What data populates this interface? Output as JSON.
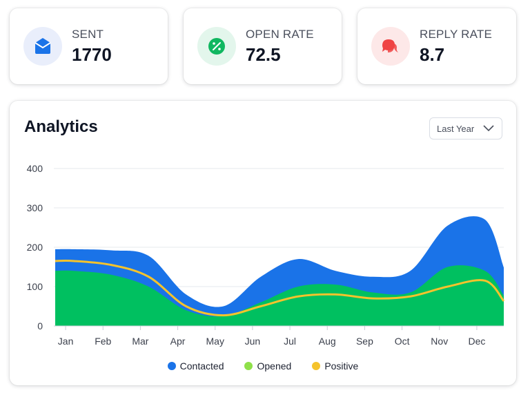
{
  "stats": [
    {
      "label": "SENT",
      "value": "1770",
      "icon": "envelope-icon",
      "icon_bg": "#e9eefb",
      "icon_color": "#1a73e8"
    },
    {
      "label": "OPEN RATE",
      "value": "72.5",
      "icon": "percent-icon",
      "icon_bg": "#e3f6ec",
      "icon_color": "#10b760"
    },
    {
      "label": "REPLY RATE",
      "value": "8.7",
      "icon": "chat-bubbles-icon",
      "icon_bg": "#fde8e8",
      "icon_color": "#ef4444"
    }
  ],
  "analytics": {
    "title": "Analytics",
    "period_select": "Last Year"
  },
  "chart_data": {
    "type": "area",
    "categories": [
      "Jan",
      "Feb",
      "Mar",
      "Apr",
      "May",
      "Jun",
      "Jul",
      "Aug",
      "Sep",
      "Oct",
      "Nov",
      "Dec"
    ],
    "ylim": [
      0,
      400
    ],
    "yticks": [
      0,
      100,
      200,
      300,
      400
    ],
    "grid": true,
    "legend_position": "bottom",
    "series": [
      {
        "name": "Contacted",
        "color": "#1a73e8",
        "values": [
          195,
          192,
          178,
          80,
          50,
          125,
          170,
          140,
          125,
          140,
          255,
          270
        ]
      },
      {
        "name": "Opened",
        "color": "#00c060",
        "values": [
          140,
          130,
          100,
          40,
          25,
          60,
          100,
          105,
          85,
          85,
          150,
          140
        ]
      },
      {
        "name": "Positive",
        "color": "#f5c32c",
        "values": [
          165,
          155,
          125,
          50,
          27,
          50,
          75,
          80,
          70,
          75,
          100,
          115
        ]
      }
    ],
    "legend_dot_colors": [
      "#1a73e8",
      "#8fe04a",
      "#f5c32c"
    ]
  }
}
